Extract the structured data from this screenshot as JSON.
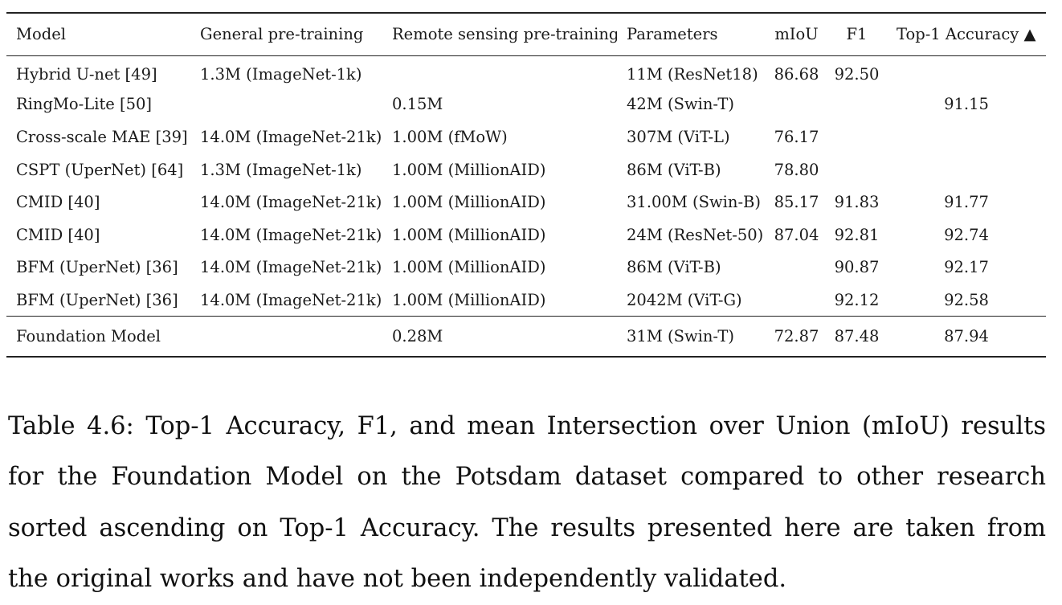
{
  "table": {
    "headers": {
      "model": "Model",
      "general": "General pre-training",
      "remote": "Remote sensing pre-training",
      "params": "Parameters",
      "miou": "mIoU",
      "f1": "F1",
      "top1": "Top-1 Accuracy ▲"
    },
    "rows": [
      {
        "model": "Hybrid U-net [49]",
        "general": "1.3M (ImageNet-1k)",
        "remote": "",
        "params": "11M (ResNet18)",
        "miou": "86.68",
        "f1": "92.50",
        "top1": ""
      },
      {
        "model": "RingMo-Lite [50]",
        "general": "",
        "remote": "0.15M",
        "params": "42M (Swin-T)",
        "miou": "",
        "f1": "",
        "top1": "91.15"
      },
      {
        "model": "Cross-scale MAE [39]",
        "general": "14.0M (ImageNet-21k)",
        "remote": "1.00M (fMoW)",
        "params": "307M (ViT-L)",
        "miou": "76.17",
        "f1": "",
        "top1": ""
      },
      {
        "model": "CSPT (UperNet) [64]",
        "general": "1.3M (ImageNet-1k)",
        "remote": "1.00M (MillionAID)",
        "params": "86M (ViT-B)",
        "miou": "78.80",
        "f1": "",
        "top1": ""
      },
      {
        "model": "CMID [40]",
        "general": "14.0M (ImageNet-21k)",
        "remote": "1.00M (MillionAID)",
        "params": "31.00M (Swin-B)",
        "miou": "85.17",
        "f1": "91.83",
        "top1": "91.77"
      },
      {
        "model": "CMID [40]",
        "general": "14.0M (ImageNet-21k)",
        "remote": "1.00M (MillionAID)",
        "params": "24M (ResNet-50)",
        "miou": "87.04",
        "f1": "92.81",
        "top1": "92.74"
      },
      {
        "model": "BFM (UperNet) [36]",
        "general": "14.0M (ImageNet-21k)",
        "remote": "1.00M (MillionAID)",
        "params": "86M (ViT-B)",
        "miou": "",
        "f1": "90.87",
        "top1": "92.17"
      },
      {
        "model": "BFM (UperNet) [36]",
        "general": "14.0M (ImageNet-21k)",
        "remote": "1.00M (MillionAID)",
        "params": "2042M (ViT-G)",
        "miou": "",
        "f1": "92.12",
        "top1": "92.58"
      }
    ],
    "footer": {
      "model": "Foundation Model",
      "general": "",
      "remote": "0.28M",
      "params": "31M (Swin-T)",
      "miou": "72.87",
      "f1": "87.48",
      "top1": "87.94"
    }
  },
  "caption": "Table 4.6: Top-1 Accuracy, F1, and mean Intersection over Union (mIoU) results for the Foundation Model on the Potsdam dataset compared to other research sorted ascending on Top-1 Accuracy. The results presented here are taken from the original works and have not been independently validated."
}
